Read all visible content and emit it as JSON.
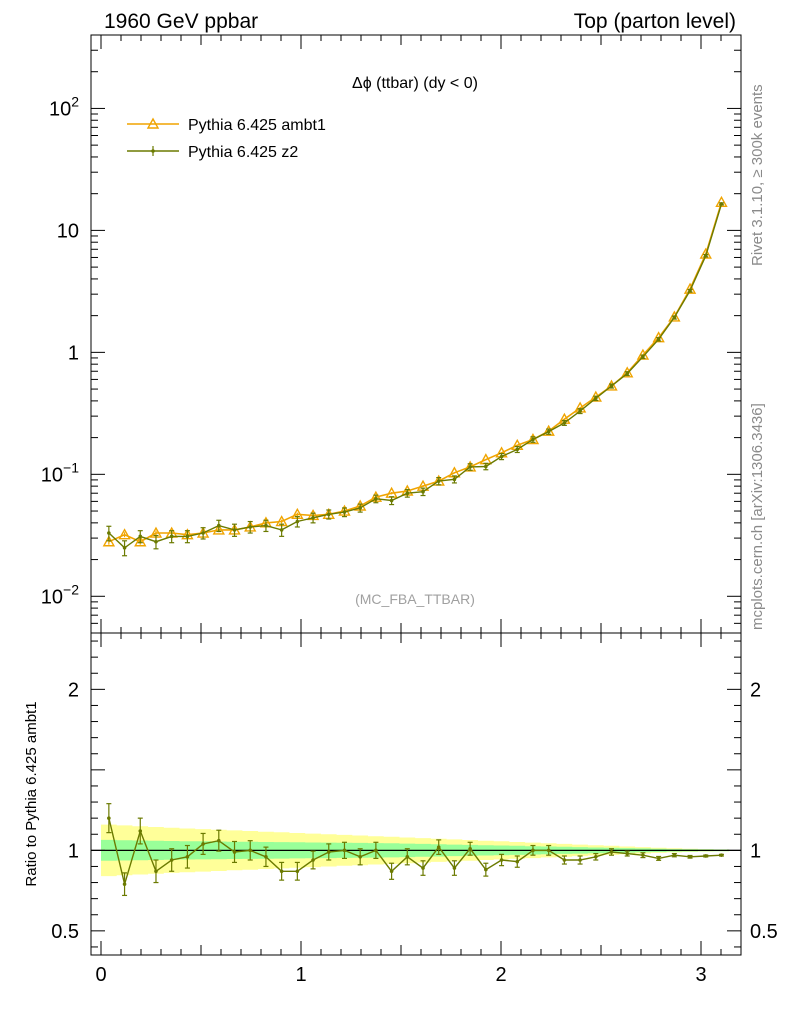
{
  "header": {
    "left": "1960 GeV ppbar",
    "right": "Top (parton level)"
  },
  "side_labels": {
    "rivet": "Rivet 3.1.10, ≥ 300k events",
    "mcplots": "mcplots.cern.ch [arXiv:1306.3436]"
  },
  "chart_data": [
    {
      "type": "line",
      "panel": "main",
      "title": "Δϕ (ttbar) (dy < 0)",
      "watermark": "(MC_FBA_TTBAR)",
      "xlabel": "",
      "ylabel": "",
      "yscale": "log",
      "xlim": [
        -0.05,
        3.2
      ],
      "ylim": [
        0.005,
        400
      ],
      "xticks": [
        0,
        1,
        2,
        3
      ],
      "yticks": [
        {
          "value": 0.01,
          "base": "10",
          "exp": "−2"
        },
        {
          "value": 0.1,
          "base": "10",
          "exp": "−1"
        },
        {
          "value": 1,
          "base": "1",
          "exp": ""
        },
        {
          "value": 10,
          "base": "10",
          "exp": ""
        },
        {
          "value": 100,
          "base": "10",
          "exp": "2"
        }
      ],
      "legend_position": "top-left",
      "x": [
        0.0393,
        0.1178,
        0.1963,
        0.2749,
        0.3534,
        0.432,
        0.5105,
        0.589,
        0.6676,
        0.7461,
        0.8247,
        0.9032,
        0.9817,
        1.0603,
        1.1388,
        1.2174,
        1.2959,
        1.3744,
        1.453,
        1.5315,
        1.6101,
        1.6886,
        1.7671,
        1.8457,
        1.9242,
        2.0028,
        2.0813,
        2.1598,
        2.2384,
        2.3169,
        2.3955,
        2.474,
        2.5525,
        2.6311,
        2.7096,
        2.7882,
        2.8667,
        2.9452,
        3.0238,
        3.1023
      ],
      "series": [
        {
          "name": "Pythia 6.425 ambt1",
          "color": "#f0a400",
          "marker": "open-triangle",
          "values": [
            0.028,
            0.032,
            0.028,
            0.033,
            0.033,
            0.032,
            0.033,
            0.035,
            0.035,
            0.037,
            0.04,
            0.041,
            0.047,
            0.046,
            0.047,
            0.05,
            0.055,
            0.065,
            0.07,
            0.073,
            0.08,
            0.088,
            0.103,
            0.115,
            0.132,
            0.15,
            0.173,
            0.193,
            0.226,
            0.283,
            0.35,
            0.43,
            0.53,
            0.68,
            0.95,
            1.32,
            1.95,
            3.3,
            6.4,
            17.0
          ],
          "errors": [
            0.0015,
            0.0015,
            0.0015,
            0.0015,
            0.0015,
            0.0015,
            0.0015,
            0.0015,
            0.0015,
            0.0015,
            0.0015,
            0.0015,
            0.0015,
            0.0015,
            0.0015,
            0.0015,
            0.0015,
            0.0015,
            0.0015,
            0.0015,
            0.0015,
            0.0015,
            0.0015,
            0.0015,
            0.0015,
            0.0015,
            0.0015,
            0.0015,
            0.0015,
            0.0015,
            0.0015,
            0.0015,
            0.0015,
            0.0015,
            0.0015,
            0.0015,
            0.0015,
            0.0015,
            0.0015,
            0.0015
          ]
        },
        {
          "name": "Pythia 6.425 z2",
          "color": "#6b7a00",
          "marker": "dot",
          "values": [
            0.033,
            0.025,
            0.031,
            0.028,
            0.031,
            0.031,
            0.033,
            0.038,
            0.035,
            0.037,
            0.038,
            0.035,
            0.041,
            0.044,
            0.047,
            0.049,
            0.053,
            0.063,
            0.061,
            0.07,
            0.072,
            0.088,
            0.091,
            0.115,
            0.116,
            0.14,
            0.16,
            0.193,
            0.224,
            0.264,
            0.33,
            0.42,
            0.53,
            0.67,
            0.92,
            1.28,
            1.93,
            3.2,
            6.2,
            16.5
          ],
          "errors": [
            0.0045,
            0.0035,
            0.0035,
            0.0035,
            0.0035,
            0.0035,
            0.0035,
            0.004,
            0.004,
            0.004,
            0.004,
            0.004,
            0.004,
            0.004,
            0.004,
            0.004,
            0.004,
            0.0045,
            0.0045,
            0.005,
            0.005,
            0.006,
            0.006,
            0.007,
            0.007,
            0.008,
            0.009,
            0.01,
            0.011,
            0.012,
            0.015,
            0.017,
            0.02,
            0.024,
            0.03,
            0.04,
            0.055,
            0.08,
            0.14,
            0.3
          ]
        }
      ]
    },
    {
      "type": "line",
      "panel": "ratio",
      "ylabel": "Ratio to Pythia 6.425 ambt1",
      "xlabel": "",
      "xlim": [
        -0.05,
        3.2
      ],
      "ylim": [
        0.35,
        2.35
      ],
      "xticks": [
        0,
        1,
        2,
        3
      ],
      "yticks": [
        0.5,
        1,
        2
      ],
      "reference": 1,
      "band_x": [
        0.0,
        0.0785,
        0.1571,
        0.2356,
        0.3142,
        0.3927,
        0.4712,
        0.5498,
        0.6283,
        0.7069,
        0.7854,
        0.8639,
        0.9425,
        1.021,
        1.0996,
        1.1781,
        1.2566,
        1.3352,
        1.4137,
        1.4923,
        1.5708,
        1.6493,
        1.7279,
        1.8064,
        1.885,
        1.9635,
        2.042,
        2.1206,
        2.1991,
        2.2777,
        2.3562,
        2.4347,
        2.5133,
        2.5918,
        2.6704,
        2.7489,
        2.8274,
        2.906,
        2.9845,
        3.0631,
        3.1416
      ],
      "bands": [
        {
          "name": "outer",
          "color": "#ffff99",
          "half_width": [
            0.16,
            0.155,
            0.15,
            0.145,
            0.14,
            0.136,
            0.132,
            0.128,
            0.124,
            0.12,
            0.116,
            0.112,
            0.108,
            0.104,
            0.1,
            0.096,
            0.092,
            0.088,
            0.084,
            0.08,
            0.076,
            0.072,
            0.068,
            0.064,
            0.06,
            0.056,
            0.052,
            0.048,
            0.044,
            0.04,
            0.036,
            0.032,
            0.028,
            0.024,
            0.02,
            0.016,
            0.013,
            0.01,
            0.008,
            0.006,
            0.005
          ]
        },
        {
          "name": "inner",
          "color": "#99ff99",
          "half_width": [
            0.065,
            0.063,
            0.061,
            0.06,
            0.058,
            0.057,
            0.056,
            0.055,
            0.054,
            0.053,
            0.052,
            0.051,
            0.05,
            0.049,
            0.048,
            0.047,
            0.046,
            0.045,
            0.044,
            0.042,
            0.04,
            0.038,
            0.036,
            0.034,
            0.032,
            0.03,
            0.028,
            0.026,
            0.024,
            0.022,
            0.02,
            0.018,
            0.016,
            0.014,
            0.012,
            0.01,
            0.008,
            0.007,
            0.006,
            0.005,
            0.004
          ]
        }
      ],
      "series": [
        {
          "name": "Pythia 6.425 z2",
          "color": "#6b7a00",
          "values": [
            1.2,
            0.79,
            1.12,
            0.87,
            0.94,
            0.96,
            1.04,
            1.06,
            0.99,
            1.0,
            0.96,
            0.87,
            0.87,
            0.94,
            0.99,
            1.0,
            0.96,
            1.0,
            0.87,
            0.96,
            0.89,
            1.02,
            0.89,
            1.01,
            0.88,
            0.94,
            0.93,
            1.0,
            1.0,
            0.94,
            0.94,
            0.96,
            0.99,
            0.98,
            0.97,
            0.95,
            0.97,
            0.96,
            0.965,
            0.97
          ],
          "errors": [
            0.09,
            0.07,
            0.08,
            0.07,
            0.07,
            0.07,
            0.065,
            0.065,
            0.065,
            0.06,
            0.06,
            0.055,
            0.055,
            0.055,
            0.05,
            0.05,
            0.05,
            0.05,
            0.05,
            0.05,
            0.045,
            0.045,
            0.045,
            0.04,
            0.04,
            0.035,
            0.035,
            0.03,
            0.03,
            0.025,
            0.025,
            0.02,
            0.02,
            0.015,
            0.015,
            0.012,
            0.01,
            0.008,
            0.006,
            0.005
          ]
        }
      ]
    }
  ]
}
